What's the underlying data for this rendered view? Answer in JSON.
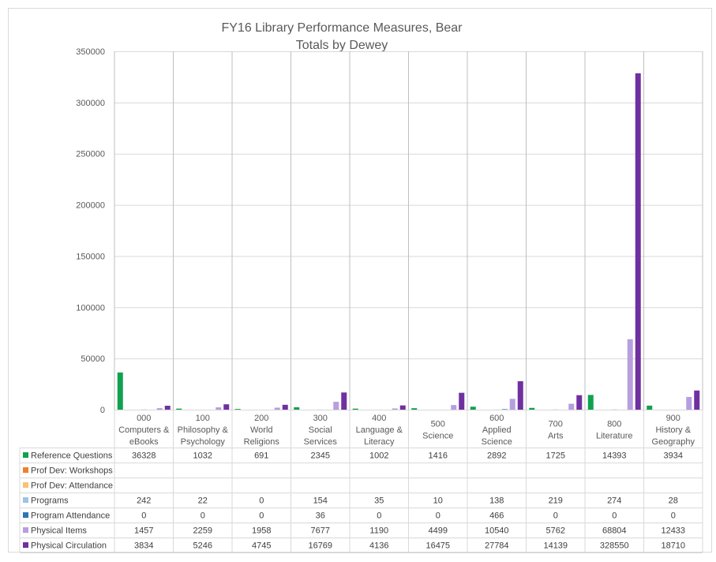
{
  "chart_data": {
    "type": "bar",
    "title": "FY16 Library Performance Measures, Bear",
    "subtitle": "Totals by Dewey",
    "ylim": [
      0,
      350000
    ],
    "y_ticks": [
      "0",
      "50000",
      "100000",
      "150000",
      "200000",
      "250000",
      "300000",
      "350000"
    ],
    "grid": true,
    "legend_placement": "data-table-left",
    "categories": [
      [
        "000",
        "Computers &",
        "eBooks"
      ],
      [
        "100",
        "Philosophy &",
        "Psychology"
      ],
      [
        "200",
        "World",
        "Religions"
      ],
      [
        "300",
        "Social",
        "Services"
      ],
      [
        "400",
        "Language &",
        "Literacy"
      ],
      [
        "500",
        "Science"
      ],
      [
        "600",
        "Applied",
        "Science"
      ],
      [
        "700",
        "Arts"
      ],
      [
        "800",
        "Literature"
      ],
      [
        "900",
        "History &",
        "Geography"
      ]
    ],
    "series": [
      {
        "name": "Reference Questions",
        "color": "#11a14f",
        "values": [
          36328,
          1032,
          691,
          2345,
          1002,
          1416,
          2892,
          1725,
          14393,
          3934
        ]
      },
      {
        "name": "Prof Dev: Workshops",
        "color": "#f07f2e",
        "values": [
          null,
          null,
          null,
          null,
          null,
          null,
          null,
          null,
          null,
          null
        ]
      },
      {
        "name": "Prof Dev: Attendance",
        "color": "#f8c46f",
        "values": [
          null,
          null,
          null,
          null,
          null,
          null,
          null,
          null,
          null,
          null
        ]
      },
      {
        "name": "Programs",
        "color": "#9dc3e6",
        "values": [
          242,
          22,
          0,
          154,
          35,
          10,
          138,
          219,
          274,
          28
        ]
      },
      {
        "name": "Program Attendance",
        "color": "#2e75b6",
        "values": [
          0,
          0,
          0,
          36,
          0,
          0,
          466,
          0,
          0,
          0
        ]
      },
      {
        "name": "Physical Items",
        "color": "#b79ee0",
        "values": [
          1457,
          2259,
          1958,
          7677,
          1190,
          4499,
          10540,
          5762,
          68804,
          12433
        ]
      },
      {
        "name": "Physical Circulation",
        "color": "#7030a0",
        "values": [
          3834,
          5246,
          4745,
          16769,
          4136,
          16475,
          27784,
          14139,
          328550,
          18710
        ]
      }
    ]
  }
}
